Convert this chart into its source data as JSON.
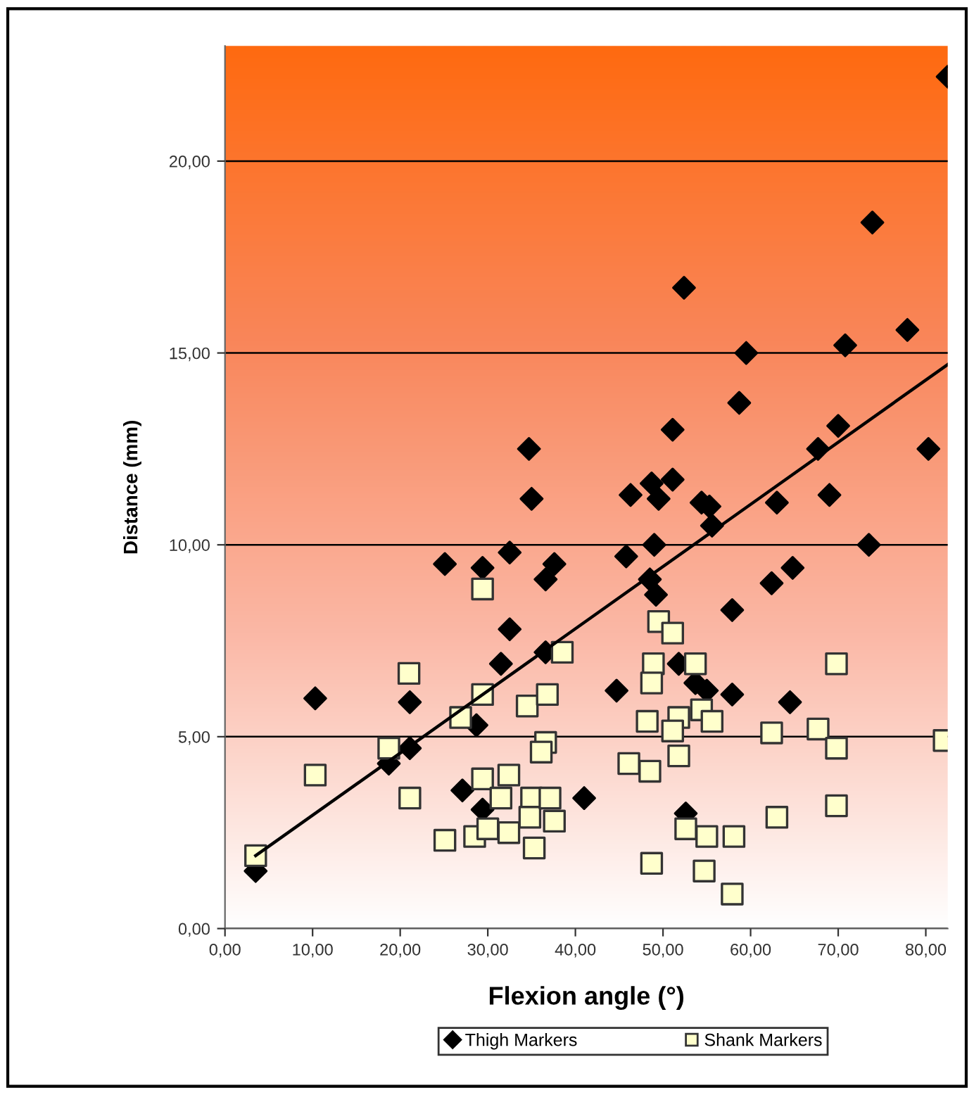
{
  "chart_data": {
    "type": "scatter",
    "xlabel": "Flexion angle (°)",
    "ylabel": "Distance (mm)",
    "xlim": [
      0,
      82.5
    ],
    "ylim": [
      0,
      23
    ],
    "xticks": [
      {
        "value": 0,
        "label": "0,00"
      },
      {
        "value": 10,
        "label": "10,00"
      },
      {
        "value": 20,
        "label": "20,00"
      },
      {
        "value": 30,
        "label": "30,00"
      },
      {
        "value": 40,
        "label": "40,00"
      },
      {
        "value": 50,
        "label": "50,00"
      },
      {
        "value": 60,
        "label": "60,00"
      },
      {
        "value": 70,
        "label": "70,00"
      },
      {
        "value": 80,
        "label": "80,00"
      }
    ],
    "yticks": [
      {
        "value": 0,
        "label": "0,00"
      },
      {
        "value": 5,
        "label": "5,00"
      },
      {
        "value": 10,
        "label": "10,00"
      },
      {
        "value": 15,
        "label": "15,00"
      },
      {
        "value": 20,
        "label": "20,00"
      }
    ],
    "grid": "y",
    "legend": "bottom",
    "series": [
      {
        "name": "Thigh Markers",
        "color": "#000000",
        "marker": "diamond",
        "x": [
          3.5,
          10.3,
          21.1,
          21.1,
          18.7,
          25.1,
          29.4,
          32.5,
          37.6,
          36.6,
          34.7,
          35.0,
          32.5,
          31.5,
          28.7,
          36.6,
          27.1,
          29.4,
          41.0,
          51.1,
          51.1,
          46.3,
          48.7,
          49.5,
          54.4,
          55.3,
          55.6,
          63.0,
          69.0,
          67.7,
          70.0,
          80.3,
          73.5,
          45.8,
          49.0,
          48.5,
          49.2,
          62.4,
          64.8,
          57.9,
          51.8,
          53.7,
          55.0,
          57.9,
          44.7,
          64.5,
          52.6,
          82.5,
          73.9,
          52.4,
          77.9,
          70.8,
          59.5,
          58.7
        ],
        "values": [
          1.5,
          6.0,
          5.9,
          4.7,
          4.3,
          9.5,
          9.4,
          9.8,
          9.5,
          9.1,
          12.5,
          11.2,
          7.8,
          6.9,
          5.3,
          7.2,
          3.6,
          3.1,
          3.4,
          13.0,
          11.7,
          11.3,
          11.6,
          11.2,
          11.1,
          11.0,
          10.5,
          11.1,
          11.3,
          12.5,
          13.1,
          12.5,
          10.0,
          9.7,
          10.0,
          9.1,
          8.7,
          9.0,
          9.4,
          8.3,
          6.9,
          6.4,
          6.2,
          6.1,
          6.2,
          5.9,
          3.0,
          22.2,
          18.4,
          16.7,
          15.6,
          15.2,
          15.0,
          13.7
        ]
      },
      {
        "name": "Shank Markers",
        "color": "#ffffcc",
        "marker": "square",
        "x": [
          3.5,
          10.3,
          18.7,
          21.1,
          21.0,
          25.1,
          26.9,
          29.4,
          29.4,
          29.4,
          28.5,
          30.0,
          32.4,
          32.4,
          31.5,
          35.0,
          34.8,
          35.3,
          37.6,
          37.1,
          34.5,
          36.8,
          36.6,
          36.1,
          38.5,
          49.5,
          51.1,
          48.9,
          48.7,
          53.7,
          69.8,
          48.2,
          51.8,
          51.1,
          54.4,
          55.6,
          51.8,
          46.1,
          48.5,
          62.4,
          67.7,
          69.8,
          82.1,
          69.8,
          63.0,
          52.6,
          55.0,
          58.1,
          48.7,
          54.7,
          57.9
        ],
        "values": [
          1.9,
          4.0,
          4.7,
          3.4,
          6.65,
          2.3,
          5.5,
          6.1,
          8.85,
          3.9,
          2.4,
          2.6,
          4.0,
          2.5,
          3.4,
          3.4,
          2.9,
          2.1,
          2.8,
          3.4,
          5.8,
          6.1,
          4.85,
          4.6,
          7.2,
          8.0,
          7.7,
          6.9,
          6.4,
          6.9,
          6.9,
          5.4,
          5.5,
          5.15,
          5.7,
          5.4,
          4.5,
          4.3,
          4.1,
          5.1,
          5.2,
          4.7,
          4.9,
          3.2,
          2.9,
          2.6,
          2.4,
          2.4,
          1.7,
          1.5,
          0.9
        ]
      },
      {
        "type": "line",
        "color": "#000000",
        "marker": "none",
        "x": [
          3.5,
          82.5
        ],
        "values": [
          1.9,
          14.7
        ]
      }
    ]
  }
}
